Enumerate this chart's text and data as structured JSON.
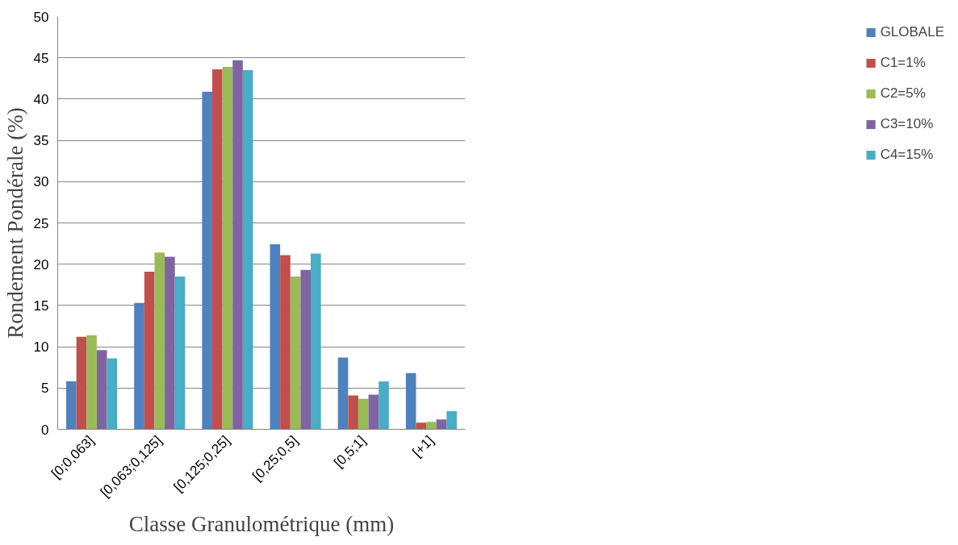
{
  "chart_data": {
    "type": "bar",
    "xlabel": "Classe Granulométrique (mm)",
    "ylabel": "Rondement Pondérale (%)",
    "categories": [
      "[0;0,063]",
      "[0,063;0,125]",
      "[0,125;0,25]",
      "[0,25;0,5]",
      "[0,5;1]",
      "[+1]"
    ],
    "series": [
      {
        "name": "GLOBALE",
        "color": "#4f81bd",
        "values": [
          5.8,
          15.3,
          40.9,
          22.4,
          8.7,
          6.8
        ]
      },
      {
        "name": "C1=1%",
        "color": "#c0504d",
        "values": [
          11.2,
          19.1,
          43.6,
          21.1,
          4.1,
          0.8
        ]
      },
      {
        "name": "C2=5%",
        "color": "#9bbb59",
        "values": [
          11.4,
          21.4,
          43.9,
          18.5,
          3.7,
          0.9
        ]
      },
      {
        "name": "C3=10%",
        "color": "#8064a2",
        "values": [
          9.6,
          20.9,
          44.7,
          19.3,
          4.2,
          1.2
        ]
      },
      {
        "name": "C4=15%",
        "color": "#4bacc6",
        "values": [
          8.6,
          18.5,
          43.5,
          21.3,
          5.8,
          2.2
        ]
      }
    ],
    "ylim": [
      0,
      50
    ],
    "yticks": [
      0,
      5,
      10,
      15,
      20,
      25,
      30,
      35,
      40,
      45,
      50
    ],
    "grid": "y",
    "legend": "right"
  }
}
